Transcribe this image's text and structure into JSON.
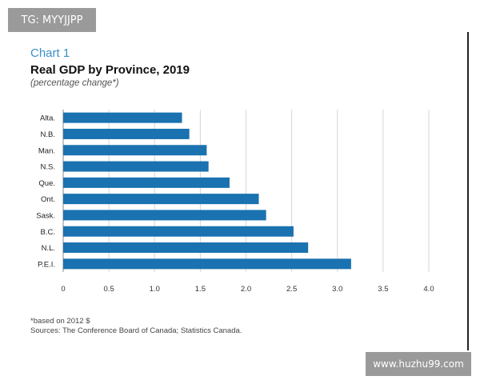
{
  "watermark_top": "TG: MYYJJPP",
  "watermark_bottom": "www.huzhu99.com",
  "chart_data": {
    "type": "bar",
    "orientation": "horizontal",
    "label": "Chart 1",
    "title": "Real GDP by Province, 2019",
    "subtitle": "(percentage change*)",
    "categories": [
      "Alta.",
      "N.B.",
      "Man.",
      "N.S.",
      "Que.",
      "Ont.",
      "Sask.",
      "B.C.",
      "N.L.",
      "P.E.I."
    ],
    "values": [
      1.3,
      1.38,
      1.57,
      1.59,
      1.82,
      2.14,
      2.22,
      2.52,
      2.68,
      3.15
    ],
    "xlim": [
      0,
      4.0
    ],
    "xticks": [
      "0",
      "0.5",
      "1.0",
      "1.5",
      "2.0",
      "2.5",
      "3.0",
      "3.5",
      "4.0"
    ],
    "xlabel": "",
    "ylabel": "",
    "grid": true,
    "bar_color": "#1a72b0",
    "footnote": "*based on 2012 $",
    "sources": "Sources: The Conference Board of Canada; Statistics Canada."
  }
}
